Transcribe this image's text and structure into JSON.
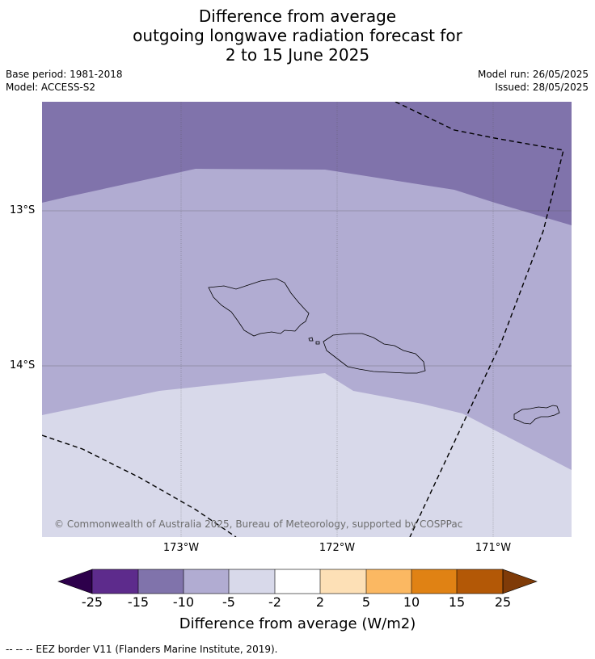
{
  "title": {
    "line1": "Difference from average",
    "line2": "outgoing longwave radiation forecast for",
    "line3": "2 to 15 June 2025"
  },
  "meta": {
    "base_period": "Base period: 1981-2018",
    "model": "Model: ACCESS-S2",
    "model_run": "Model run: 26/05/2025",
    "issued": "Issued: 28/05/2025"
  },
  "map": {
    "lat_labels": [
      "13°S",
      "14°S"
    ],
    "lon_labels": [
      "173°W",
      "172°W",
      "171°W"
    ],
    "copyright": "© Commonwealth of Australia 2025, Bureau of Meteorology, supported by COSPPac",
    "colors": {
      "dark_purple": "#8073ab",
      "mid_purple": "#b1acd2",
      "light_purple": "#d8d9ea"
    }
  },
  "colorbar": {
    "label": "Difference from average (W/m2)",
    "ticks": [
      "-25",
      "-15",
      "-10",
      "-5",
      "-2",
      "2",
      "5",
      "10",
      "15",
      "25"
    ],
    "under_color": "#2d004b",
    "over_color": "#7f3b08",
    "colors": [
      "#5d2b8c",
      "#8073ab",
      "#b1acd2",
      "#d8d9ea",
      "#ffffff",
      "#fde0b6",
      "#fbb862",
      "#e08214",
      "#b35806"
    ]
  },
  "footnote": "--  --  -- EEZ border V11 (Flanders Marine Institute, 2019)."
}
